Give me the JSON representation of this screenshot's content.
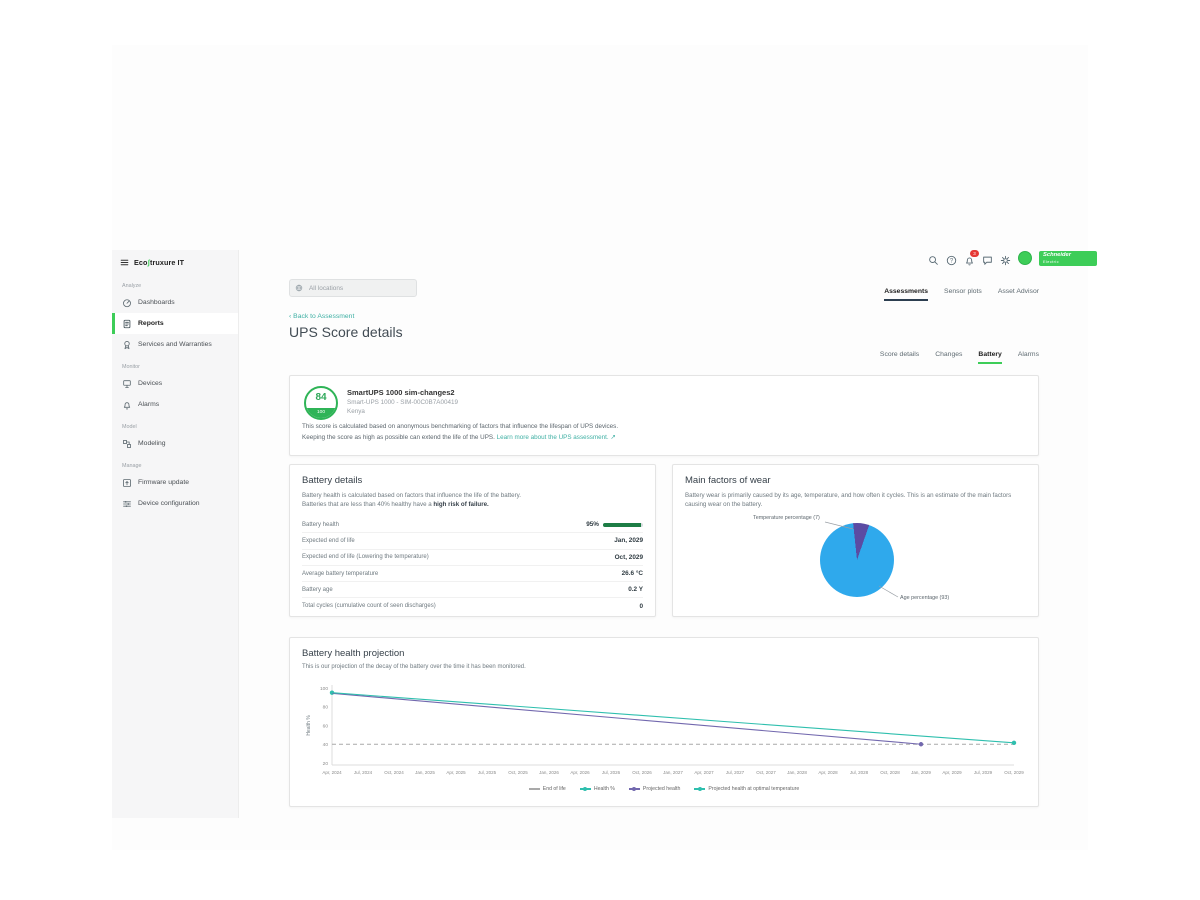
{
  "brand": {
    "logo_eco": "Eco",
    "logo_rest": "truxure IT",
    "schneider_line1": "Schneider",
    "schneider_line2": "Electric"
  },
  "topbar": {
    "notification_count": "3"
  },
  "search": {
    "placeholder": "All locations"
  },
  "sidebar": {
    "sections": [
      {
        "label": "Analyze",
        "items": [
          {
            "label": "Dashboards",
            "icon": "dashboards-icon",
            "active": false
          },
          {
            "label": "Reports",
            "icon": "reports-icon",
            "active": true
          },
          {
            "label": "Services and Warranties",
            "icon": "services-icon",
            "active": false
          }
        ]
      },
      {
        "label": "Monitor",
        "items": [
          {
            "label": "Devices",
            "icon": "devices-icon",
            "active": false
          },
          {
            "label": "Alarms",
            "icon": "alarms-icon",
            "active": false
          }
        ]
      },
      {
        "label": "Model",
        "items": [
          {
            "label": "Modeling",
            "icon": "modeling-icon",
            "active": false
          }
        ]
      },
      {
        "label": "Manage",
        "items": [
          {
            "label": "Firmware update",
            "icon": "firmware-icon",
            "active": false
          },
          {
            "label": "Device configuration",
            "icon": "device-config-icon",
            "active": false
          }
        ]
      }
    ]
  },
  "page_tabs": [
    {
      "label": "Assessments",
      "active": true
    },
    {
      "label": "Sensor plots",
      "active": false
    },
    {
      "label": "Asset Advisor",
      "active": false
    }
  ],
  "back_link": "Back to Assessment",
  "page_title": "UPS Score details",
  "detail_tabs": [
    {
      "label": "Score details",
      "active": false
    },
    {
      "label": "Changes",
      "active": false
    },
    {
      "label": "Battery",
      "active": true
    },
    {
      "label": "Alarms",
      "active": false
    }
  ],
  "score_card": {
    "score": "84",
    "score_max": "100",
    "device_name": "SmartUPS 1000 sim-changes2",
    "device_model": "Smart-UPS 1000 - SIM-00C0B7A00419",
    "device_location": "Kenya",
    "desc_line1": "This score is calculated based on anonymous benchmarking of factors that influence the lifespan of UPS devices.",
    "desc_line2": "Keeping the score as high as possible can extend the life of the UPS.",
    "learn_more": "Learn more about the UPS assessment.",
    "external_icon": "↗"
  },
  "battery_details": {
    "title": "Battery details",
    "desc_1": "Battery health is calculated based on factors that influence the life of the battery.",
    "desc_2": "Batteries that are less than 40% healthy have a ",
    "desc_bold": "high risk of failure.",
    "rows": [
      {
        "label": "Battery health",
        "value": "95%",
        "bar": 95
      },
      {
        "label": "Expected end of life",
        "value": "Jan, 2029"
      },
      {
        "label": "Expected end of life (Lowering the temperature)",
        "value": "Oct, 2029"
      },
      {
        "label": "Average battery temperature",
        "value": "26.6 °C"
      },
      {
        "label": "Battery age",
        "value": "0.2 Y"
      },
      {
        "label": "Total cycles (cumulative count of seen discharges)",
        "value": "0"
      }
    ]
  },
  "wear_card": {
    "title": "Main factors of wear",
    "desc": "Battery wear is primarily caused by its age, temperature, and how often it cycles. This is an estimate of the main factors causing wear on the battery.",
    "label_temp": "Temperature percentage (7)",
    "label_age": "Age percentage (93)"
  },
  "projection_card": {
    "title": "Battery health projection",
    "desc": "This is our projection of the decay of the battery over the time it has been monitored."
  },
  "colors": {
    "accent_green": "#3dcd58",
    "teal_link": "#3fb0a4",
    "health_bar_green": "#1d7d45",
    "pie_blue": "#2fa9ec",
    "pie_purple": "#5b4ba3"
  },
  "chart_data": [
    {
      "type": "pie",
      "title": "Main factors of wear",
      "labels": [
        "Temperature percentage",
        "Age percentage"
      ],
      "values": [
        7,
        93
      ],
      "colors": [
        "#5b4ba3",
        "#2fa9ec"
      ],
      "start_deg": -6
    },
    {
      "type": "line",
      "title": "Battery health projection",
      "xlabel": "",
      "ylabel": "Health %",
      "ylim": [
        20,
        100
      ],
      "yticks": [
        20,
        40,
        60,
        80,
        100
      ],
      "x": [
        "Apr, 2024",
        "Jul, 2024",
        "Oct, 2024",
        "Jan, 2025",
        "Apr, 2025",
        "Jul, 2025",
        "Oct, 2025",
        "Jan, 2026",
        "Apr, 2026",
        "Jul, 2026",
        "Oct, 2026",
        "Jan, 2027",
        "Apr, 2027",
        "Jul, 2027",
        "Oct, 2027",
        "Jan, 2028",
        "Apr, 2028",
        "Jul, 2028",
        "Oct, 2028",
        "Jan, 2029",
        "Apr, 2029",
        "Jul, 2029",
        "Oct, 2029"
      ],
      "series": [
        {
          "name": "End of life",
          "color": "#a9a9a9",
          "dash": [
            4,
            3
          ],
          "points": [
            [
              0,
              40
            ],
            [
              22,
              40
            ]
          ],
          "dots": []
        },
        {
          "name": "Health %",
          "color": "#2fbfae",
          "dash": null,
          "points": [],
          "dots": [
            [
              0,
              95
            ]
          ]
        },
        {
          "name": "Projected health",
          "color": "#7268ae",
          "dash": null,
          "points": [
            [
              0,
              94.3
            ],
            [
              19,
              40
            ]
          ],
          "dots": [
            [
              19,
              40
            ]
          ]
        },
        {
          "name": "Projected health at optimal temperature",
          "color": "#2fbfae",
          "dash": null,
          "points": [
            [
              0,
              95
            ],
            [
              22,
              41.5
            ]
          ],
          "dots": [
            [
              22,
              41.5
            ]
          ]
        }
      ],
      "legend_position": "bottom"
    }
  ]
}
